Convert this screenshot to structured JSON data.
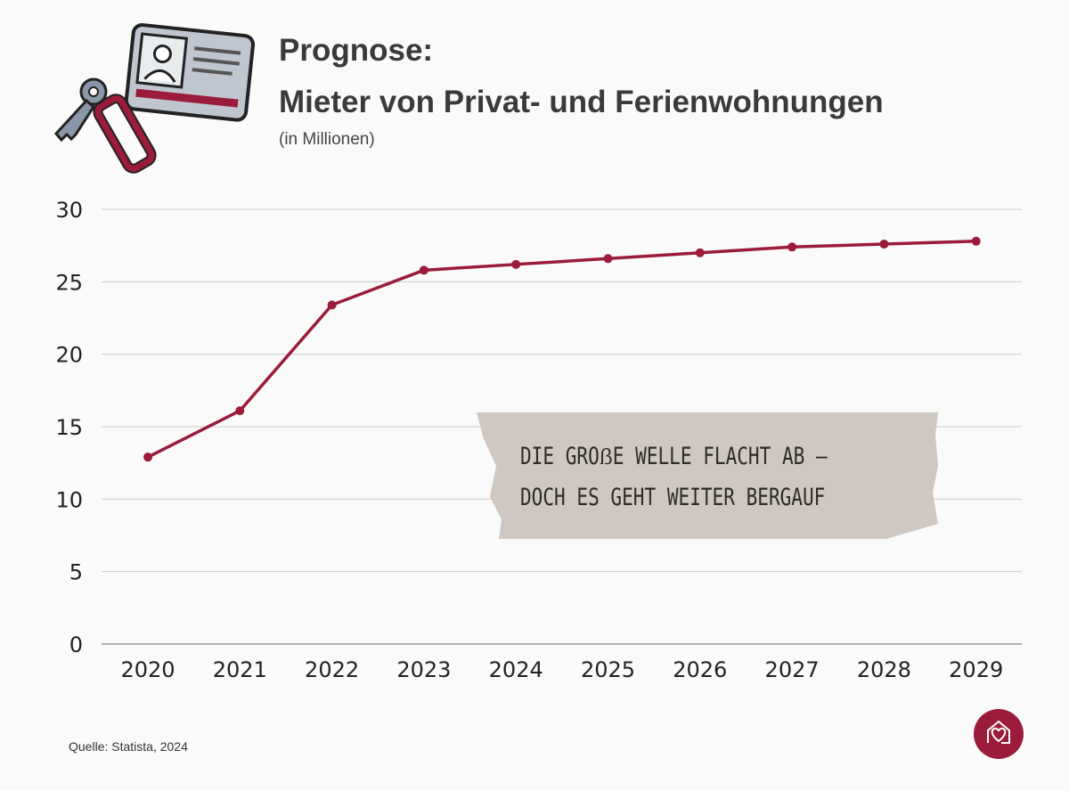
{
  "header": {
    "title_line1": "Prognose:",
    "title_line2": "Mieter von Privat- und Ferienwohnungen",
    "subtitle": "(in Millionen)"
  },
  "annotation": {
    "line1": "DIE GROẞE WELLE FLACHT AB –",
    "line2": "DOCH ES GEHT WEITER BERGAUF"
  },
  "footer": {
    "source": "Quelle: Statista, 2024"
  },
  "icons": {
    "illustration": "keys-and-id-card-icon",
    "logo": "house-heart-icon"
  },
  "colors": {
    "line": "#9b1b3b",
    "grid": "#cccccc",
    "note_bg": "#cfc8c2",
    "logo_bg": "#9b1b3b"
  },
  "chart_data": {
    "type": "line",
    "title": "Prognose: Mieter von Privat- und Ferienwohnungen",
    "subtitle": "(in Millionen)",
    "xlabel": "",
    "ylabel": "",
    "categories": [
      "2020",
      "2021",
      "2022",
      "2023",
      "2024",
      "2025",
      "2026",
      "2027",
      "2028",
      "2029"
    ],
    "values": [
      12.9,
      16.1,
      23.4,
      25.8,
      26.2,
      26.6,
      27.0,
      27.4,
      27.6,
      27.8
    ],
    "ylim": [
      0,
      30
    ],
    "yticks": [
      "0",
      "5",
      "10",
      "15",
      "20",
      "25",
      "30"
    ],
    "grid": true,
    "markers": true
  }
}
